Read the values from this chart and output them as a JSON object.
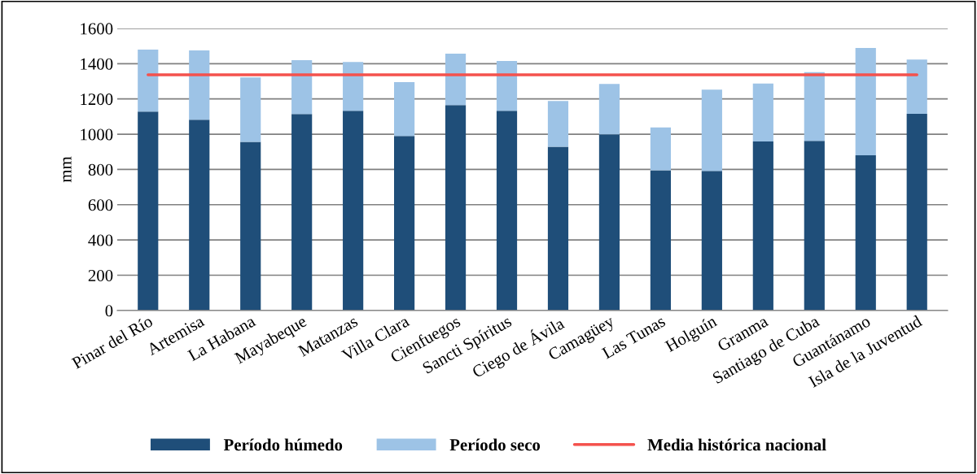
{
  "chart_data": {
    "type": "bar",
    "stacked": true,
    "ylabel": "mm",
    "categories": [
      "Pinar del Río",
      "Artemisa",
      "La Habana",
      "Mayabeque",
      "Matanzas",
      "Villa Clara",
      "Cienfuegos",
      "Sancti Spíritus",
      "Ciego de Ávila",
      "Camagüey",
      "Las Tunas",
      "Holguín",
      "Granma",
      "Santiago de Cuba",
      "Guantánamo",
      "Isla de la Juventud"
    ],
    "series": [
      {
        "name": "Período húmedo",
        "color": "#1f4e79",
        "values": [
          1128,
          1082,
          957,
          1114,
          1133,
          990,
          1165,
          1133,
          929,
          999,
          795,
          792,
          959,
          962,
          880,
          1116
        ]
      },
      {
        "name": "Período seco",
        "color": "#9dc3e6",
        "values": [
          352,
          393,
          365,
          306,
          277,
          305,
          292,
          282,
          259,
          286,
          243,
          461,
          328,
          390,
          609,
          308
        ]
      },
      {
        "name": "Media histórica nacional",
        "type": "line",
        "color": "#f4524d",
        "values": [
          1337,
          1337,
          1337,
          1337,
          1337,
          1337,
          1337,
          1337,
          1337,
          1337,
          1337,
          1337,
          1337,
          1337,
          1337,
          1337
        ]
      }
    ],
    "ylim": [
      0,
      1600
    ],
    "yticks": [
      0,
      200,
      400,
      600,
      800,
      1000,
      1200,
      1400,
      1600
    ],
    "grid": "y",
    "legend": "bottom"
  }
}
